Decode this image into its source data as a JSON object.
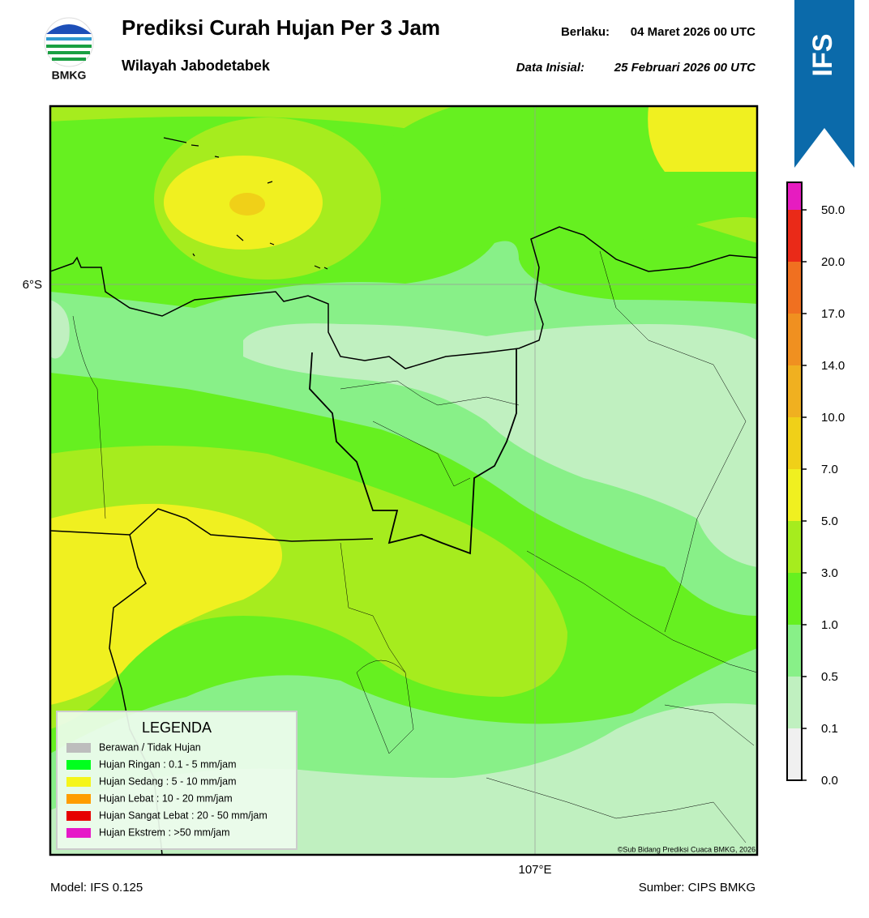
{
  "header": {
    "logo_text": "BMKG",
    "title": "Prediksi Curah Hujan Per 3 Jam",
    "subtitle": "Wilayah Jabodetabek",
    "valid_label": "Berlaku:",
    "valid_value": "04 Maret 2026 00 UTC",
    "init_label": "Data Inisial:",
    "init_value": "25 Februari 2026 00 UTC",
    "badge": "IFS"
  },
  "map": {
    "lat_label": "6°S",
    "lon_label": "107°E",
    "copyright": "©Sub Bidang Prediksi Cuaca BMKG, 2026"
  },
  "legend": {
    "title": "LEGENDA",
    "items": [
      {
        "label": "Berawan / Tidak Hujan",
        "color": "#bdbdbd"
      },
      {
        "label": "Hujan Ringan : 0.1 - 5 mm/jam",
        "color": "#00ff1e"
      },
      {
        "label": "Hujan Sedang : 5 - 10 mm/jam",
        "color": "#f5f51a"
      },
      {
        "label": "Hujan Lebat : 10 - 20 mm/jam",
        "color": "#ff9d00"
      },
      {
        "label": "Hujan Sangat Lebat : 20 - 50 mm/jam",
        "color": "#e60000"
      },
      {
        "label": "Hujan Ekstrem : >50 mm/jam",
        "color": "#e619c8"
      }
    ]
  },
  "colorbar": {
    "ticks": [
      "0.0",
      "0.1",
      "0.5",
      "1.0",
      "3.0",
      "5.0",
      "7.0",
      "10.0",
      "14.0",
      "17.0",
      "20.0",
      "50.0"
    ],
    "colors": [
      "#f0f0f0",
      "#c0f0c0",
      "#88f088",
      "#66f020",
      "#a6ec1e",
      "#f0f020",
      "#f0d018",
      "#f0b020",
      "#f09020",
      "#f07020",
      "#ea2a18",
      "#e61cc0"
    ]
  },
  "footer": {
    "model": "Model: IFS 0.125",
    "source": "Sumber: CIPS BMKG"
  }
}
